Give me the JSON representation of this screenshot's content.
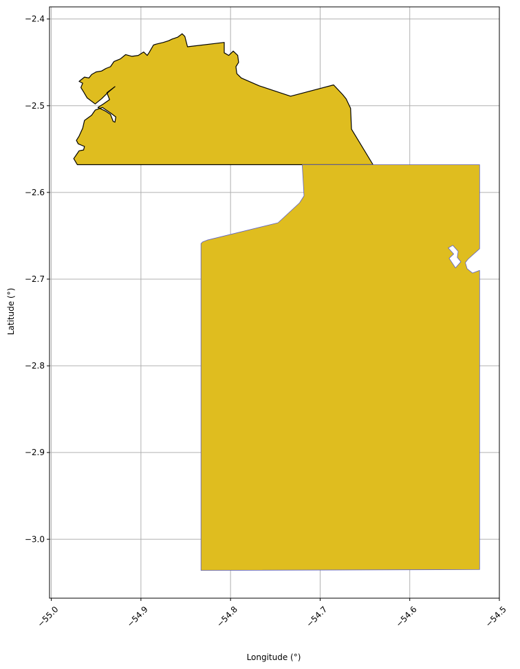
{
  "chart_data": {
    "type": "map",
    "xlabel": "Longitude (°)",
    "ylabel": "Latitude (°)",
    "xlim": [
      -55.002,
      -54.5
    ],
    "ylim": [
      -3.068,
      -2.386
    ],
    "grid": true,
    "x_ticks": [
      {
        "value": -55.0,
        "label": "−55.0"
      },
      {
        "value": -54.9,
        "label": "−54.9"
      },
      {
        "value": -54.8,
        "label": "−54.8"
      },
      {
        "value": -54.7,
        "label": "−54.7"
      },
      {
        "value": -54.6,
        "label": "−54.6"
      },
      {
        "value": -54.5,
        "label": "−54.5"
      }
    ],
    "y_ticks": [
      {
        "value": -2.4,
        "label": "−2.4"
      },
      {
        "value": -2.5,
        "label": "−2.5"
      },
      {
        "value": -2.6,
        "label": "−2.6"
      },
      {
        "value": -2.7,
        "label": "−2.7"
      },
      {
        "value": -2.8,
        "label": "−2.8"
      },
      {
        "value": -2.9,
        "label": "−2.9"
      },
      {
        "value": -3.0,
        "label": "−3.0"
      }
    ],
    "colors": {
      "fill": "#dfbd1f",
      "north_edge": "#000000",
      "south_edge": "#5b5fc7",
      "grid": "#b0b0b0"
    },
    "regions": [
      {
        "edge": "north_edge",
        "outline": [
          [
            -54.971,
            -2.568
          ],
          [
            -54.641,
            -2.568
          ],
          [
            -54.665,
            -2.527
          ],
          [
            -54.666,
            -2.503
          ],
          [
            -54.671,
            -2.492
          ],
          [
            -54.675,
            -2.487
          ],
          [
            -54.685,
            -2.476
          ],
          [
            -54.733,
            -2.489
          ],
          [
            -54.768,
            -2.477
          ],
          [
            -54.788,
            -2.468
          ],
          [
            -54.793,
            -2.463
          ],
          [
            -54.794,
            -2.455
          ],
          [
            -54.791,
            -2.45
          ],
          [
            -54.792,
            -2.442
          ],
          [
            -54.797,
            -2.437
          ],
          [
            -54.802,
            -2.442
          ],
          [
            -54.807,
            -2.439
          ],
          [
            -54.807,
            -2.427
          ],
          [
            -54.848,
            -2.432
          ],
          [
            -54.851,
            -2.42
          ],
          [
            -54.854,
            -2.417
          ],
          [
            -54.859,
            -2.421
          ],
          [
            -54.865,
            -2.423
          ],
          [
            -54.869,
            -2.425
          ],
          [
            -54.875,
            -2.427
          ],
          [
            -54.883,
            -2.429
          ],
          [
            -54.886,
            -2.43
          ],
          [
            -54.891,
            -2.439
          ],
          [
            -54.893,
            -2.442
          ],
          [
            -54.897,
            -2.438
          ],
          [
            -54.903,
            -2.442
          ],
          [
            -54.91,
            -2.443
          ],
          [
            -54.917,
            -2.441
          ],
          [
            -54.923,
            -2.446
          ],
          [
            -54.93,
            -2.449
          ],
          [
            -54.934,
            -2.455
          ],
          [
            -54.939,
            -2.457
          ],
          [
            -54.944,
            -2.46
          ],
          [
            -54.95,
            -2.461
          ],
          [
            -54.955,
            -2.464
          ],
          [
            -54.958,
            -2.468
          ],
          [
            -54.963,
            -2.467
          ],
          [
            -54.969,
            -2.472
          ],
          [
            -54.965,
            -2.474
          ],
          [
            -54.967,
            -2.479
          ],
          [
            -54.964,
            -2.484
          ],
          [
            -54.96,
            -2.491
          ],
          [
            -54.951,
            -2.498
          ],
          [
            -54.944,
            -2.492
          ],
          [
            -54.94,
            -2.488
          ],
          [
            -54.936,
            -2.484
          ],
          [
            -54.929,
            -2.478
          ],
          [
            -54.938,
            -2.485
          ],
          [
            -54.935,
            -2.493
          ],
          [
            -54.942,
            -2.498
          ],
          [
            -54.948,
            -2.502
          ],
          [
            -54.94,
            -2.506
          ],
          [
            -54.934,
            -2.51
          ],
          [
            -54.931,
            -2.518
          ],
          [
            -54.929,
            -2.519
          ],
          [
            -54.928,
            -2.513
          ],
          [
            -54.933,
            -2.509
          ],
          [
            -54.943,
            -2.502
          ],
          [
            -54.951,
            -2.505
          ],
          [
            -54.955,
            -2.511
          ],
          [
            -54.963,
            -2.517
          ],
          [
            -54.965,
            -2.526
          ],
          [
            -54.969,
            -2.535
          ],
          [
            -54.972,
            -2.54
          ],
          [
            -54.97,
            -2.544
          ],
          [
            -54.963,
            -2.547
          ],
          [
            -54.964,
            -2.551
          ],
          [
            -54.969,
            -2.552
          ],
          [
            -54.971,
            -2.555
          ],
          [
            -54.975,
            -2.561
          ]
        ]
      },
      {
        "edge": "south_edge",
        "outline": [
          [
            -54.833,
            -3.036
          ],
          [
            -54.522,
            -3.035
          ],
          [
            -54.522,
            -2.69
          ],
          [
            -54.53,
            -2.693
          ],
          [
            -54.536,
            -2.688
          ],
          [
            -54.538,
            -2.681
          ],
          [
            -54.535,
            -2.677
          ],
          [
            -54.522,
            -2.665
          ],
          [
            -54.522,
            -2.568
          ],
          [
            -54.72,
            -2.568
          ],
          [
            -54.718,
            -2.604
          ],
          [
            -54.723,
            -2.612
          ],
          [
            -54.747,
            -2.635
          ],
          [
            -54.826,
            -2.655
          ],
          [
            -54.831,
            -2.657
          ],
          [
            -54.833,
            -2.659
          ]
        ],
        "holes": [
          [
            [
              -54.556,
              -2.676
            ],
            [
              -54.549,
              -2.687
            ],
            [
              -54.543,
              -2.68
            ],
            [
              -54.547,
              -2.675
            ],
            [
              -54.546,
              -2.668
            ],
            [
              -54.552,
              -2.661
            ],
            [
              -54.557,
              -2.664
            ],
            [
              -54.551,
              -2.671
            ]
          ]
        ]
      }
    ]
  }
}
